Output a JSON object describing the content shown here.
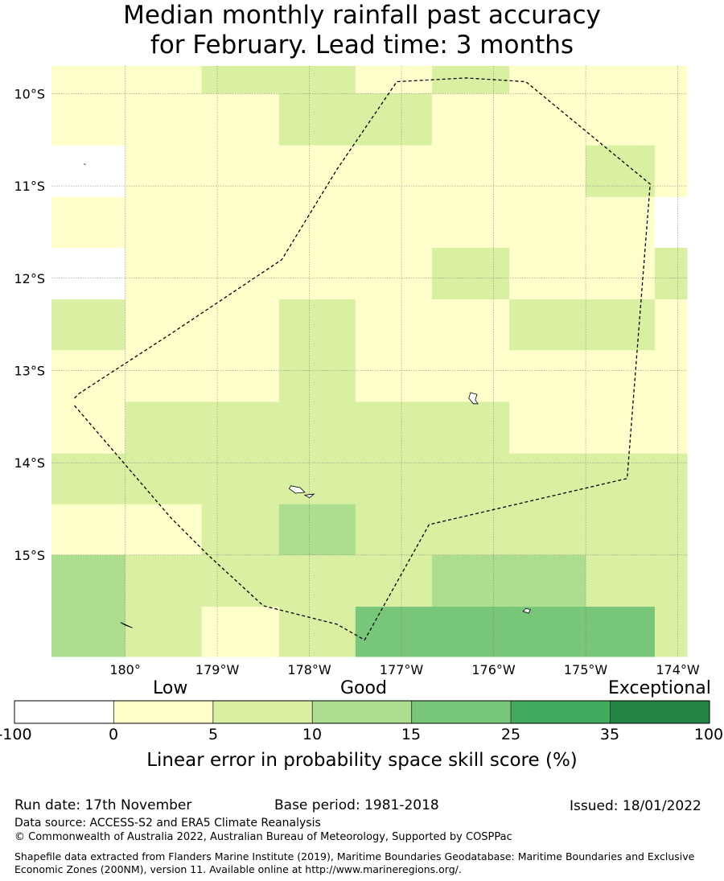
{
  "title_line1": "Median monthly rainfall past accuracy",
  "title_line2": "for February. Lead time: 3 months",
  "map": {
    "lon_range": [
      -180.8,
      -173.9
    ],
    "lat_range": [
      -16.1,
      -9.7
    ],
    "lon_ticks": [
      {
        "lon": -180,
        "label": "180°"
      },
      {
        "lon": -179,
        "label": "179°W"
      },
      {
        "lon": -178,
        "label": "178°W"
      },
      {
        "lon": -177,
        "label": "177°W"
      },
      {
        "lon": -176,
        "label": "176°W"
      },
      {
        "lon": -175,
        "label": "175°W"
      },
      {
        "lon": -174,
        "label": "174°W"
      }
    ],
    "lat_ticks": [
      {
        "lat": -10,
        "label": "10°S"
      },
      {
        "lat": -11,
        "label": "11°S"
      },
      {
        "lat": -12,
        "label": "12°S"
      },
      {
        "lat": -13,
        "label": "13°S"
      },
      {
        "lat": -14,
        "label": "14°S"
      },
      {
        "lat": -15,
        "label": "15°S"
      }
    ],
    "grid_lon_edges": [
      -180.8,
      -180.0,
      -179.17,
      -178.33,
      -177.5,
      -176.67,
      -175.83,
      -175.0,
      -174.25,
      -173.9
    ],
    "grid_lat_edges": [
      -9.7,
      -10.0,
      -10.56,
      -11.12,
      -11.67,
      -12.23,
      -12.78,
      -13.34,
      -13.9,
      -14.45,
      -15.0,
      -15.56,
      -16.1
    ],
    "cell_classes": [
      [
        1,
        1,
        2,
        2,
        1,
        2,
        1,
        1,
        1
      ],
      [
        1,
        1,
        1,
        2,
        2,
        1,
        1,
        1,
        1
      ],
      [
        0,
        1,
        1,
        1,
        1,
        1,
        1,
        2,
        1
      ],
      [
        1,
        1,
        1,
        1,
        1,
        1,
        1,
        1,
        0
      ],
      [
        0,
        1,
        1,
        1,
        1,
        2,
        1,
        1,
        2
      ],
      [
        2,
        1,
        1,
        2,
        1,
        1,
        2,
        2,
        1
      ],
      [
        1,
        1,
        1,
        2,
        1,
        1,
        1,
        1,
        1
      ],
      [
        1,
        2,
        2,
        2,
        2,
        2,
        1,
        1,
        1
      ],
      [
        2,
        2,
        2,
        2,
        2,
        2,
        2,
        2,
        2
      ],
      [
        1,
        1,
        2,
        3,
        2,
        2,
        2,
        2,
        2
      ],
      [
        3,
        2,
        2,
        2,
        2,
        3,
        3,
        2,
        2
      ],
      [
        3,
        2,
        1,
        2,
        4,
        4,
        4,
        4,
        2
      ]
    ],
    "eez_boundary": [
      [
        -180.55,
        -13.3
      ],
      [
        -180.5,
        -13.25
      ],
      [
        -179.5,
        -12.6
      ],
      [
        -178.3,
        -11.8
      ],
      [
        -177.7,
        -10.82
      ],
      [
        -177.05,
        -9.87
      ],
      [
        -176.3,
        -9.83
      ],
      [
        -175.65,
        -9.87
      ],
      [
        -174.3,
        -10.98
      ],
      [
        -174.55,
        -14.17
      ],
      [
        -176.7,
        -14.67
      ],
      [
        -177.4,
        -15.92
      ],
      [
        -177.7,
        -15.75
      ],
      [
        -178.5,
        -15.55
      ],
      [
        -179.1,
        -15.0
      ],
      [
        -179.5,
        -14.6
      ],
      [
        -180.55,
        -13.38
      ]
    ],
    "islands": [
      [
        [
          -176.25,
          -13.24
        ],
        [
          -176.18,
          -13.26
        ],
        [
          -176.2,
          -13.32
        ],
        [
          -176.17,
          -13.36
        ],
        [
          -176.22,
          -13.36
        ],
        [
          -176.27,
          -13.3
        ]
      ],
      [
        [
          -178.2,
          -14.25
        ],
        [
          -178.1,
          -14.27
        ],
        [
          -178.05,
          -14.32
        ],
        [
          -178.15,
          -14.33
        ],
        [
          -178.22,
          -14.28
        ]
      ],
      [
        [
          -178.05,
          -14.35
        ],
        [
          -177.95,
          -14.34
        ],
        [
          -178.0,
          -14.38
        ]
      ],
      [
        [
          -175.65,
          -15.58
        ],
        [
          -175.6,
          -15.59
        ],
        [
          -175.62,
          -15.63
        ],
        [
          -175.68,
          -15.61
        ]
      ],
      [
        [
          -180.05,
          -15.73
        ],
        [
          -179.92,
          -15.79
        ],
        [
          -180.0,
          -15.76
        ]
      ],
      [
        [
          -180.45,
          -10.76
        ],
        [
          -180.43,
          -10.77
        ]
      ]
    ]
  },
  "colorbar": {
    "colors": [
      "#ffffff",
      "#ffffcc",
      "#d9f0a3",
      "#addd8e",
      "#78c679",
      "#41ab5d",
      "#238443"
    ],
    "ticks": [
      "-100",
      "0",
      "5",
      "10",
      "15",
      "25",
      "35",
      "100"
    ],
    "category_labels": [
      "Low",
      "Good",
      "Exceptional"
    ],
    "title": "Linear error in probability space skill score (%)"
  },
  "footer": {
    "run_date": "Run date: 17th November",
    "base_period": "Base period: 1981-2018",
    "issued": "Issued: 18/01/2022",
    "data_source": "Data source: ACCESS-S2 and ERA5 Climate Reanalysis",
    "copyright": "© Commonwealth of Australia 2022, Australian Bureau of Meteorology, Supported by COSPPac",
    "shapefile_note": "Shapefile data extracted from Flanders Marine Institute (2019), Maritime Boundaries Geodatabase: Maritime Boundaries and Exclusive Economic Zones (200NM), version 11. Available online at http://www.marineregions.org/."
  }
}
